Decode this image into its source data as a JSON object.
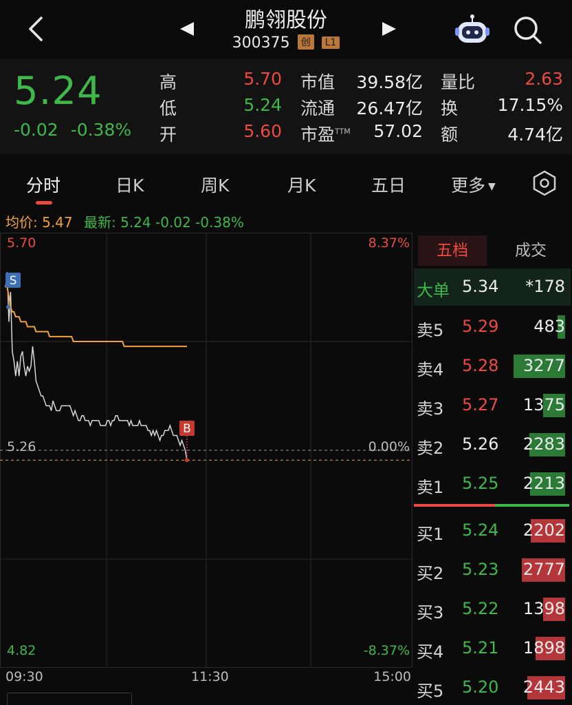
{
  "header": {
    "title": "鹏翎股份",
    "code": "300375",
    "tag_chuang": "创",
    "tag_level": "L1",
    "icons": [
      "back-arrow-icon",
      "prev-triangle-icon",
      "next-triangle-icon",
      "robot-assistant-icon",
      "search-icon"
    ]
  },
  "quote": {
    "price": "5.24",
    "change": "-0.02",
    "change_pct": "-0.38%",
    "high_label": "高",
    "high": "5.70",
    "low_label": "低",
    "low": "5.24",
    "open_label": "开",
    "open": "5.60",
    "mktcap_label": "市值",
    "mktcap": "39.58亿",
    "float_label": "流通",
    "float": "26.47亿",
    "pe_label": "市盈",
    "pe_sup": "TTM",
    "pe": "57.02",
    "volratio_label": "量比",
    "volratio": "2.63",
    "turnover_label": "换",
    "turnover": "17.15%",
    "amount_label": "额",
    "amount": "4.74亿"
  },
  "tabs": {
    "t1": "分时",
    "t2": "日K",
    "t3": "周K",
    "t4": "月K",
    "t5": "五日",
    "t6": "更多"
  },
  "info": {
    "avg_label": "均价: 5.47",
    "latest_label": "最新: 5.24  -0.02  -0.38%"
  },
  "chart_data": {
    "type": "line",
    "y_top_price": "5.70",
    "y_mid_price": "5.26",
    "y_bottom_price": "4.82",
    "y_top_pct": "8.37%",
    "y_mid_pct": "0.00%",
    "y_bottom_pct": "-8.37%",
    "ylim": [
      4.82,
      5.7
    ],
    "x_ticks": [
      "09:30",
      "11:30",
      "15:00"
    ],
    "markers": {
      "sell": "S",
      "buy": "B"
    },
    "series": [
      {
        "name": "最新",
        "color": "#d9d9d9",
        "values": [
          5.59,
          5.62,
          5.52,
          5.58,
          5.46,
          5.44,
          5.41,
          5.44,
          5.41,
          5.45,
          5.46,
          5.43,
          5.41,
          5.43,
          5.42,
          5.43,
          5.47,
          5.44,
          5.4,
          5.39,
          5.38,
          5.37,
          5.37,
          5.36,
          5.35,
          5.35,
          5.35,
          5.34,
          5.36,
          5.35,
          5.34,
          5.34,
          5.34,
          5.35,
          5.35,
          5.35,
          5.35,
          5.35,
          5.35,
          5.34,
          5.33,
          5.34,
          5.33,
          5.32,
          5.32,
          5.33,
          5.33,
          5.32,
          5.32,
          5.32,
          5.31,
          5.32,
          5.32,
          5.32,
          5.32,
          5.32,
          5.31,
          5.31,
          5.31,
          5.31,
          5.32,
          5.32,
          5.31,
          5.32,
          5.32,
          5.33,
          5.33,
          5.32,
          5.32,
          5.32,
          5.32,
          5.32,
          5.32,
          5.31,
          5.32,
          5.31,
          5.31,
          5.31,
          5.31,
          5.32,
          5.31,
          5.31,
          5.31,
          5.31,
          5.3,
          5.3,
          5.29,
          5.3,
          5.29,
          5.3,
          5.29,
          5.28,
          5.29,
          5.29,
          5.3,
          5.3,
          5.3,
          5.31,
          5.3,
          5.29,
          5.29,
          5.29,
          5.28,
          5.27,
          5.28,
          5.27,
          5.26,
          5.24
        ]
      },
      {
        "name": "均价",
        "color": "#f2a23b",
        "values": [
          5.59,
          5.59,
          5.57,
          5.55,
          5.54,
          5.54,
          5.53,
          5.53,
          5.53,
          5.52,
          5.52,
          5.52,
          5.52,
          5.51,
          5.51,
          5.51,
          5.51,
          5.51,
          5.5,
          5.5,
          5.5,
          5.5,
          5.5,
          5.5,
          5.5,
          5.5,
          5.49,
          5.49,
          5.49,
          5.49,
          5.49,
          5.49,
          5.49,
          5.49,
          5.49,
          5.49,
          5.49,
          5.49,
          5.49,
          5.49,
          5.48,
          5.48,
          5.48,
          5.48,
          5.48,
          5.48,
          5.48,
          5.48,
          5.48,
          5.48,
          5.48,
          5.48,
          5.48,
          5.48,
          5.48,
          5.48,
          5.48,
          5.48,
          5.48,
          5.48,
          5.48,
          5.48,
          5.48,
          5.48,
          5.48,
          5.48,
          5.48,
          5.48,
          5.48,
          5.48,
          5.47,
          5.47,
          5.47,
          5.47,
          5.47,
          5.47,
          5.47,
          5.47,
          5.47,
          5.47,
          5.47,
          5.47,
          5.47,
          5.47,
          5.47,
          5.47,
          5.47,
          5.47,
          5.47,
          5.47,
          5.47,
          5.47,
          5.47,
          5.47,
          5.47,
          5.47,
          5.47,
          5.47,
          5.47,
          5.47,
          5.47,
          5.47,
          5.47,
          5.47,
          5.47,
          5.47,
          5.47,
          5.47
        ]
      }
    ]
  },
  "orderbook": {
    "tab_active": "五档",
    "tab_other": "成交",
    "big_label": "大单",
    "big_price": "5.34",
    "big_vol": "*178",
    "asks": [
      {
        "label": "卖5",
        "price": "5.29",
        "vol": "483",
        "color": "#ec4a40",
        "fill": 0.12
      },
      {
        "label": "卖4",
        "price": "5.28",
        "vol": "3277",
        "color": "#ec4a40",
        "fill": 0.85
      },
      {
        "label": "卖3",
        "price": "5.27",
        "vol": "1375",
        "color": "#ec4a40",
        "fill": 0.36
      },
      {
        "label": "卖2",
        "price": "5.26",
        "vol": "2283",
        "color": "#ececec",
        "fill": 0.59
      },
      {
        "label": "卖1",
        "price": "5.25",
        "vol": "2213",
        "color": "#3fb84b",
        "fill": 0.58
      }
    ],
    "bids": [
      {
        "label": "买1",
        "price": "5.24",
        "vol": "2202",
        "color": "#3fb84b",
        "fill": 0.57
      },
      {
        "label": "买2",
        "price": "5.23",
        "vol": "2777",
        "color": "#3fb84b",
        "fill": 0.72
      },
      {
        "label": "买3",
        "price": "5.22",
        "vol": "1398",
        "color": "#3fb84b",
        "fill": 0.36
      },
      {
        "label": "买4",
        "price": "5.21",
        "vol": "1898",
        "color": "#3fb84b",
        "fill": 0.49
      },
      {
        "label": "买5",
        "price": "5.20",
        "vol": "2443",
        "color": "#3fb84b",
        "fill": 0.63
      }
    ]
  }
}
